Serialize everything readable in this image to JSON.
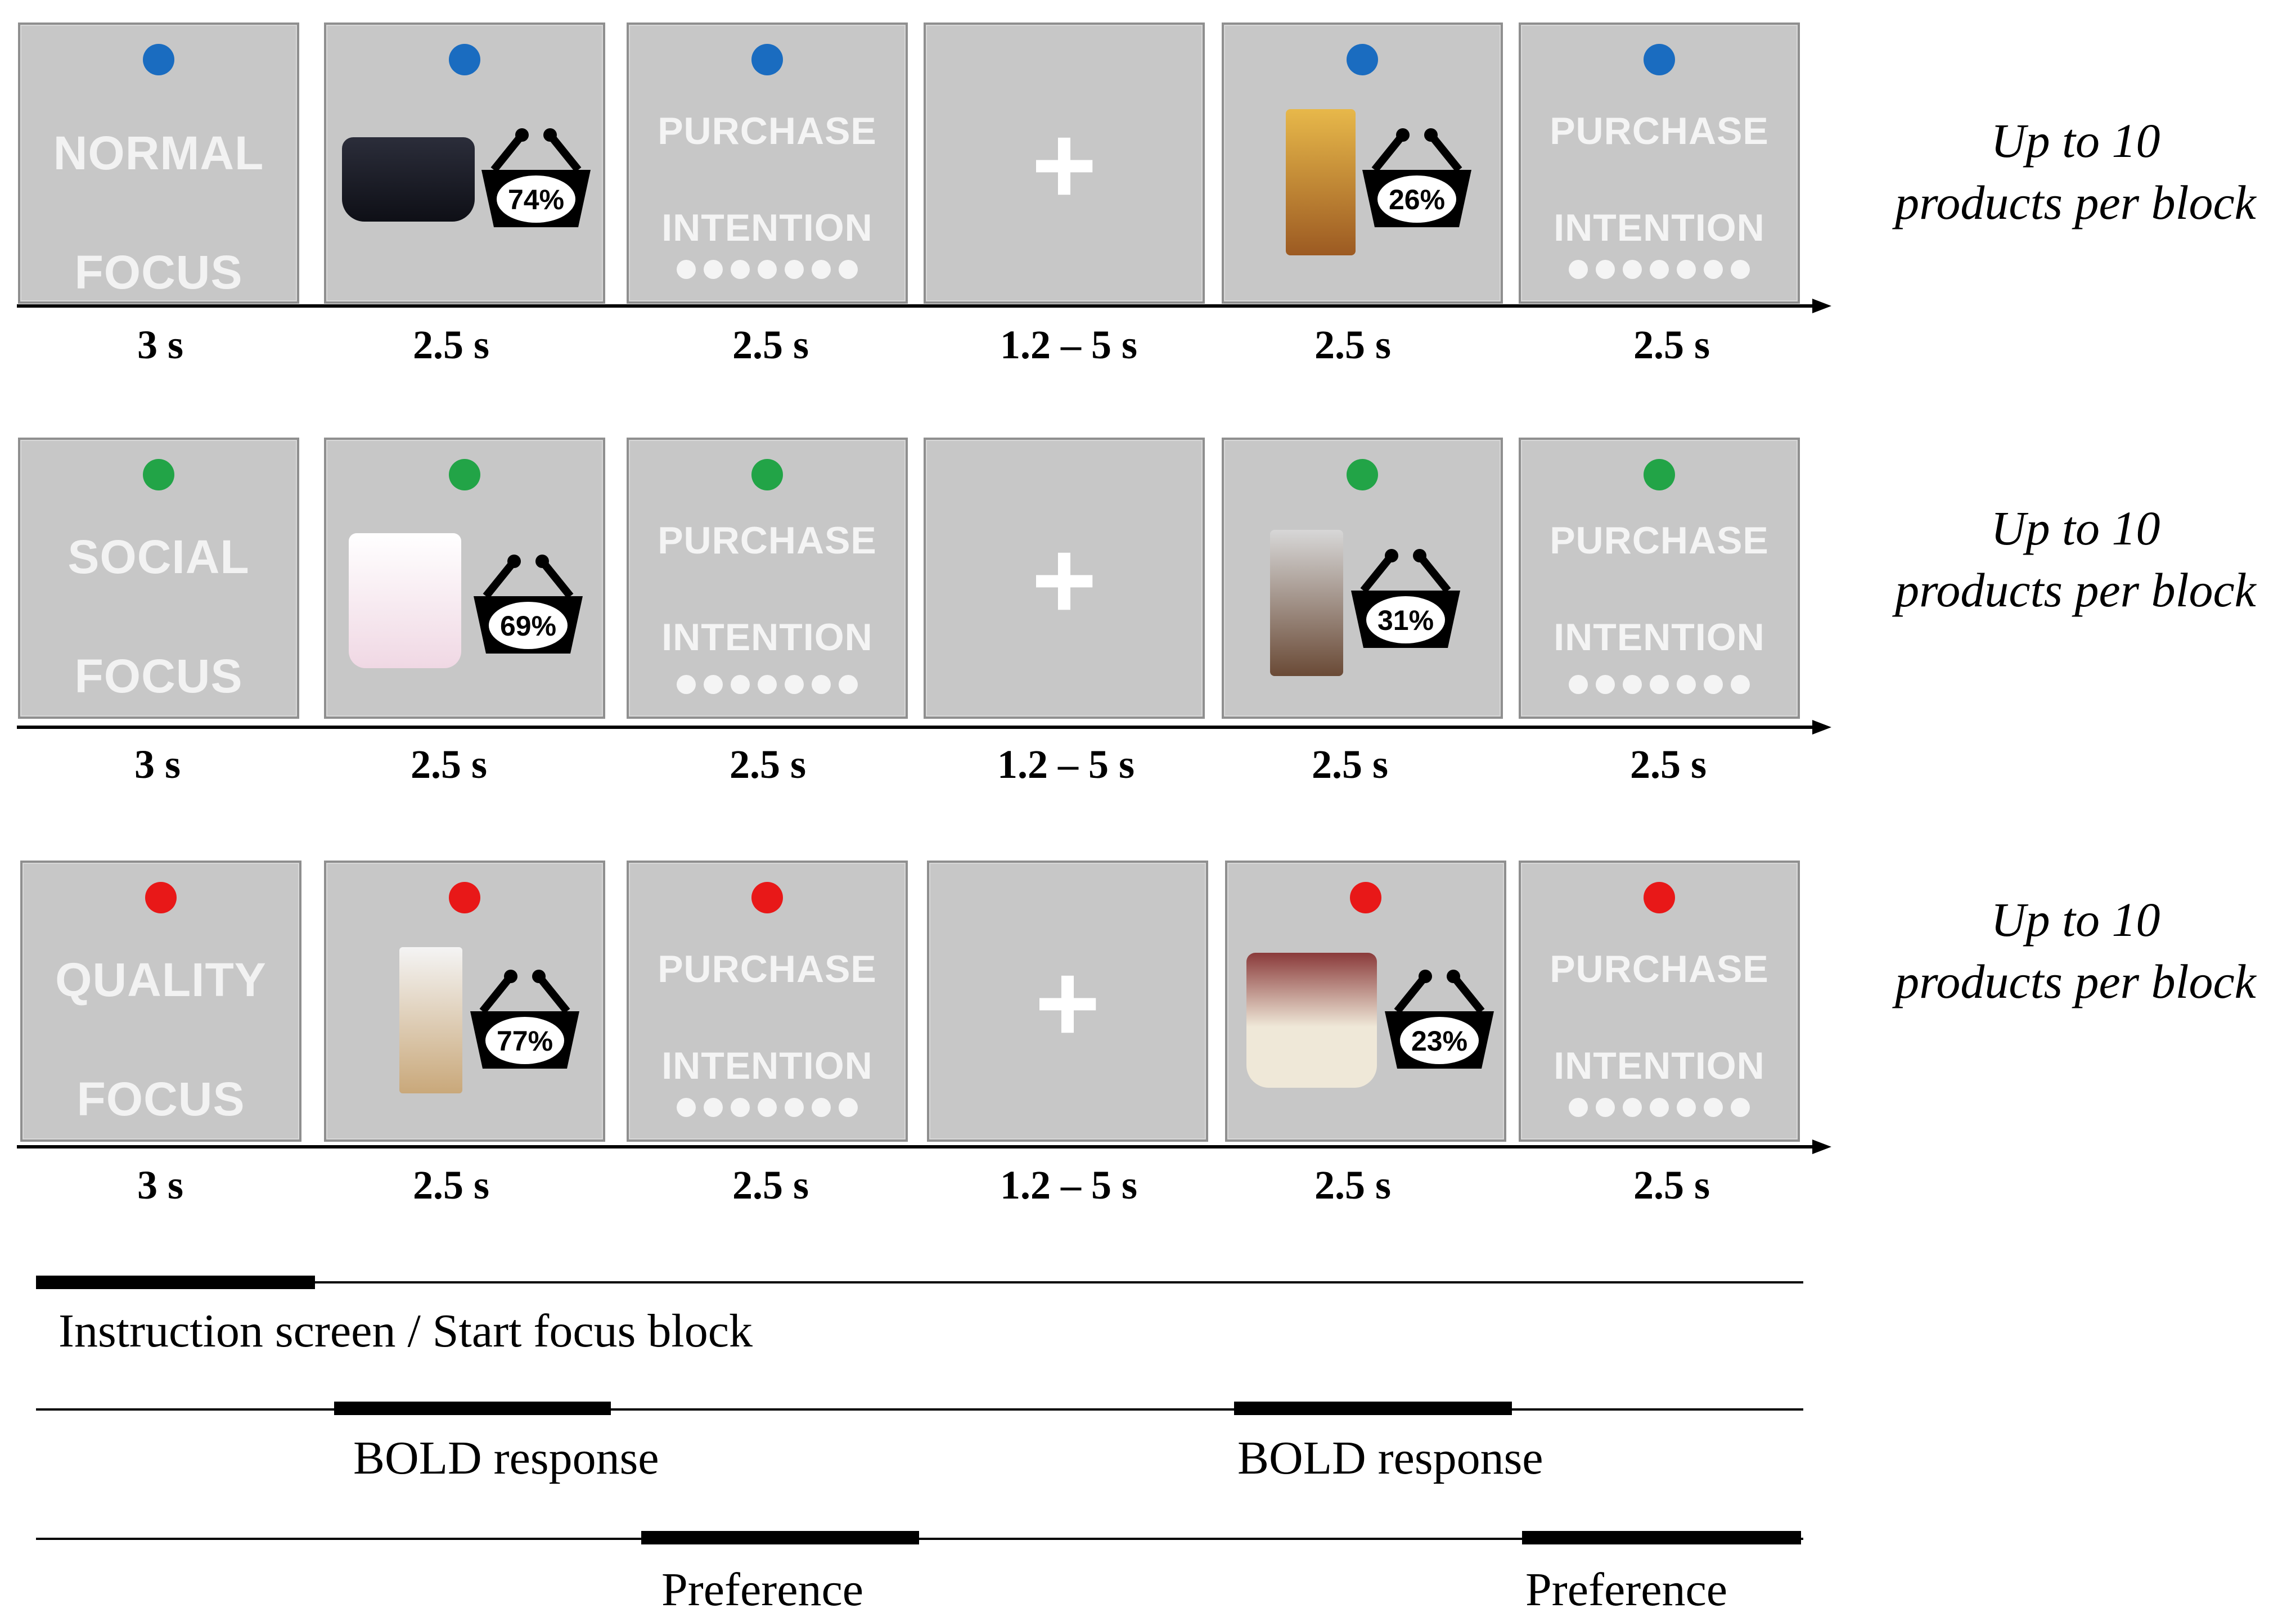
{
  "colors": {
    "normal": "#1a6cc0",
    "social": "#22a447",
    "quality": "#e81818",
    "screen_bg": "#c7c7c7"
  },
  "common": {
    "purchase": "PURCHASE",
    "intention": "INTENTION",
    "fixation": "+",
    "up_to": "Up to 10",
    "per_block": "products per block"
  },
  "rows": [
    {
      "focus_word1": "NORMAL",
      "focus_word2": "FOCUS",
      "pct1": "74%",
      "pct2": "26%",
      "durations": [
        "3 s",
        "2.5 s",
        "2.5 s",
        "1.2 – 5 s",
        "2.5 s",
        "2.5 s"
      ]
    },
    {
      "focus_word1": "SOCIAL",
      "focus_word2": "FOCUS",
      "pct1": "69%",
      "pct2": "31%",
      "durations": [
        "3 s",
        "2.5 s",
        "2.5 s",
        "1.2 – 5 s",
        "2.5 s",
        "2.5 s"
      ]
    },
    {
      "focus_word1": "QUALITY",
      "focus_word2": "FOCUS",
      "pct1": "77%",
      "pct2": "23%",
      "durations": [
        "3 s",
        "2.5 s",
        "2.5 s",
        "1.2 – 5 s",
        "2.5 s",
        "2.5 s"
      ]
    }
  ],
  "timeline": {
    "instruction": "Instruction screen / Start focus block",
    "bold1": "BOLD response",
    "bold2": "BOLD response",
    "pref1": "Preference",
    "pref2": "Preference"
  }
}
